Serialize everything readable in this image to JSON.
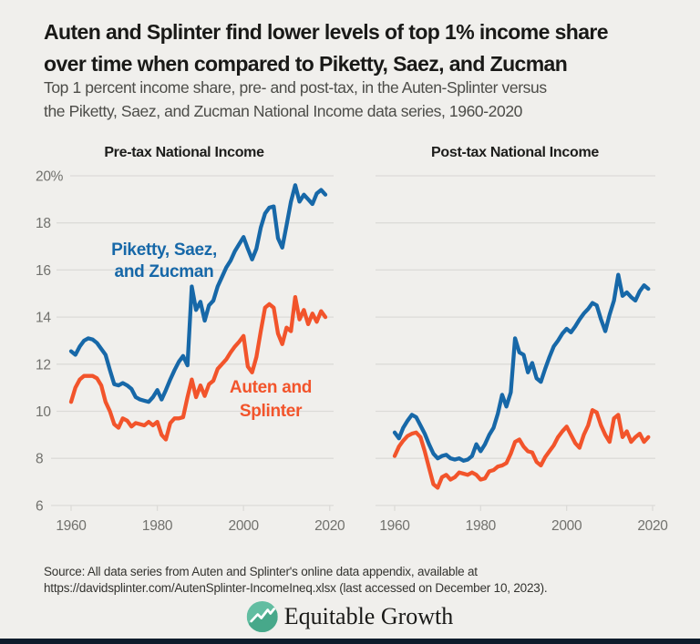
{
  "page": {
    "background": "#f0efec",
    "bottom_bar_color": "#0e1c2b"
  },
  "header": {
    "title_line1": "Auten and Splinter find lower levels of top 1% income share",
    "title_line2": "over time when compared to Piketty, Saez, and Zucman",
    "subtitle_line1": "Top 1 percent income share, pre- and post-tax, in the Auten-Splinter versus",
    "subtitle_line2": "the Piketty, Saez, and Zucman National Income data series, 1960-2020"
  },
  "colors": {
    "psz": "#1768a8",
    "as": "#f2542b",
    "grid": "#dcdbd8",
    "axis_text": "#71716d",
    "chart_title_text": "#1d1d1b"
  },
  "chart_data": [
    {
      "type": "line",
      "title": "Pre-tax National Income",
      "xlabel": "",
      "ylabel": "",
      "ylim": [
        6,
        20
      ],
      "xlim": [
        1960,
        2020
      ],
      "grid": true,
      "legend_position": "inline-annotations",
      "y_labels_visible": true,
      "yticks": [
        {
          "value": 20,
          "label": "20%"
        },
        {
          "value": 18,
          "label": "18"
        },
        {
          "value": 16,
          "label": "16"
        },
        {
          "value": 14,
          "label": "14"
        },
        {
          "value": 12,
          "label": "12"
        },
        {
          "value": 10,
          "label": "10"
        },
        {
          "value": 8,
          "label": "8"
        },
        {
          "value": 6,
          "label": "6"
        }
      ],
      "xticks": [
        {
          "value": 1960,
          "label": "1960"
        },
        {
          "value": 1980,
          "label": "1980"
        },
        {
          "value": 2000,
          "label": "2000"
        },
        {
          "value": 2020,
          "label": "2020"
        }
      ],
      "years": [
        1960,
        1961,
        1962,
        1963,
        1964,
        1965,
        1966,
        1967,
        1968,
        1969,
        1970,
        1971,
        1972,
        1973,
        1974,
        1975,
        1976,
        1977,
        1978,
        1979,
        1980,
        1981,
        1982,
        1983,
        1984,
        1985,
        1986,
        1987,
        1988,
        1989,
        1990,
        1991,
        1992,
        1993,
        1994,
        1995,
        1996,
        1997,
        1998,
        1999,
        2000,
        2001,
        2002,
        2003,
        2004,
        2005,
        2006,
        2007,
        2008,
        2009,
        2010,
        2011,
        2012,
        2013,
        2014,
        2015,
        2016,
        2017,
        2018,
        2019
      ],
      "series": [
        {
          "name": "Piketty, Saez, and Zucman",
          "color_key": "psz",
          "values": [
            12.55,
            12.4,
            12.75,
            13.0,
            13.1,
            13.05,
            12.9,
            12.65,
            12.4,
            11.75,
            11.15,
            11.1,
            11.2,
            11.1,
            10.95,
            10.6,
            10.5,
            10.45,
            10.4,
            10.6,
            10.9,
            10.5,
            10.9,
            11.35,
            11.75,
            12.1,
            12.35,
            11.95,
            15.3,
            14.3,
            14.65,
            13.85,
            14.5,
            14.7,
            15.3,
            15.7,
            16.1,
            16.4,
            16.8,
            17.1,
            17.4,
            16.9,
            16.45,
            16.9,
            17.8,
            18.4,
            18.65,
            18.7,
            17.35,
            16.95,
            17.9,
            18.9,
            19.6,
            18.9,
            19.2,
            19.0,
            18.8,
            19.25,
            19.4,
            19.2
          ]
        },
        {
          "name": "Auten and Splinter",
          "color_key": "as",
          "values": [
            10.4,
            11.0,
            11.35,
            11.5,
            11.5,
            11.5,
            11.4,
            11.1,
            10.4,
            10.0,
            9.45,
            9.3,
            9.7,
            9.6,
            9.35,
            9.5,
            9.45,
            9.4,
            9.55,
            9.4,
            9.55,
            9.0,
            8.8,
            9.5,
            9.7,
            9.7,
            9.75,
            10.6,
            11.35,
            10.6,
            11.1,
            10.65,
            11.15,
            11.3,
            11.8,
            12.0,
            12.2,
            12.5,
            12.75,
            12.95,
            13.2,
            11.9,
            11.65,
            12.3,
            13.4,
            14.4,
            14.55,
            14.4,
            13.3,
            12.85,
            13.55,
            13.4,
            14.85,
            13.9,
            14.3,
            13.7,
            14.15,
            13.8,
            14.25,
            14.0
          ]
        }
      ],
      "annotations": [
        {
          "color_key": "psz",
          "lines": [
            "Piketty, Saez,",
            "and Zucman"
          ]
        },
        {
          "color_key": "as",
          "lines": [
            "Auten and",
            "Splinter"
          ]
        }
      ]
    },
    {
      "type": "line",
      "title": "Post-tax National Income",
      "xlabel": "",
      "ylabel": "",
      "ylim": [
        6,
        20
      ],
      "xlim": [
        1960,
        2020
      ],
      "grid": true,
      "legend_position": "none",
      "y_labels_visible": false,
      "yticks": [
        {
          "value": 20,
          "label": "20%"
        },
        {
          "value": 18,
          "label": "18"
        },
        {
          "value": 16,
          "label": "16"
        },
        {
          "value": 14,
          "label": "14"
        },
        {
          "value": 12,
          "label": "12"
        },
        {
          "value": 10,
          "label": "10"
        },
        {
          "value": 8,
          "label": "8"
        },
        {
          "value": 6,
          "label": "6"
        }
      ],
      "xticks": [
        {
          "value": 1960,
          "label": "1960"
        },
        {
          "value": 1980,
          "label": "1980"
        },
        {
          "value": 2000,
          "label": "2000"
        },
        {
          "value": 2020,
          "label": "2020"
        }
      ],
      "years": [
        1960,
        1961,
        1962,
        1963,
        1964,
        1965,
        1966,
        1967,
        1968,
        1969,
        1970,
        1971,
        1972,
        1973,
        1974,
        1975,
        1976,
        1977,
        1978,
        1979,
        1980,
        1981,
        1982,
        1983,
        1984,
        1985,
        1986,
        1987,
        1988,
        1989,
        1990,
        1991,
        1992,
        1993,
        1994,
        1995,
        1996,
        1997,
        1998,
        1999,
        2000,
        2001,
        2002,
        2003,
        2004,
        2005,
        2006,
        2007,
        2008,
        2009,
        2010,
        2011,
        2012,
        2013,
        2014,
        2015,
        2016,
        2017,
        2018,
        2019
      ],
      "series": [
        {
          "name": "Piketty, Saez, and Zucman",
          "color_key": "psz",
          "values": [
            9.1,
            8.85,
            9.3,
            9.6,
            9.85,
            9.75,
            9.4,
            9.05,
            8.6,
            8.2,
            8.0,
            8.1,
            8.15,
            8.0,
            7.95,
            8.0,
            7.9,
            7.95,
            8.1,
            8.6,
            8.3,
            8.6,
            9.0,
            9.3,
            9.9,
            10.7,
            10.2,
            10.8,
            13.1,
            12.5,
            12.4,
            11.65,
            12.05,
            11.4,
            11.25,
            11.8,
            12.3,
            12.75,
            13.0,
            13.3,
            13.5,
            13.35,
            13.6,
            13.9,
            14.15,
            14.35,
            14.6,
            14.5,
            13.9,
            13.4,
            14.1,
            14.7,
            15.8,
            14.9,
            15.05,
            14.85,
            14.7,
            15.1,
            15.35,
            15.2
          ]
        },
        {
          "name": "Auten and Splinter",
          "color_key": "as",
          "values": [
            8.1,
            8.5,
            8.75,
            8.95,
            9.05,
            9.1,
            8.9,
            8.3,
            7.6,
            6.9,
            6.75,
            7.2,
            7.3,
            7.1,
            7.2,
            7.4,
            7.35,
            7.3,
            7.4,
            7.3,
            7.1,
            7.15,
            7.45,
            7.5,
            7.65,
            7.7,
            7.8,
            8.2,
            8.7,
            8.8,
            8.5,
            8.3,
            8.25,
            7.85,
            7.7,
            8.05,
            8.3,
            8.55,
            8.9,
            9.15,
            9.35,
            9.0,
            8.65,
            8.45,
            9.0,
            9.4,
            10.05,
            9.95,
            9.4,
            9.0,
            8.7,
            9.7,
            9.85,
            8.9,
            9.15,
            8.7,
            8.9,
            9.05,
            8.7,
            8.9
          ]
        }
      ],
      "annotations": []
    }
  ],
  "footer": {
    "source_line1": "Source: All data series from Auten and Splinter's online data appendix, available at",
    "source_line2": "https://davidsplinter.com/AutenSplinter-IncomeIneq.xlsx (last accessed on December 10, 2023).",
    "logo_text": "Equitable Growth",
    "logo_teal": "#62bda1",
    "logo_teal_dark": "#47a88a"
  }
}
